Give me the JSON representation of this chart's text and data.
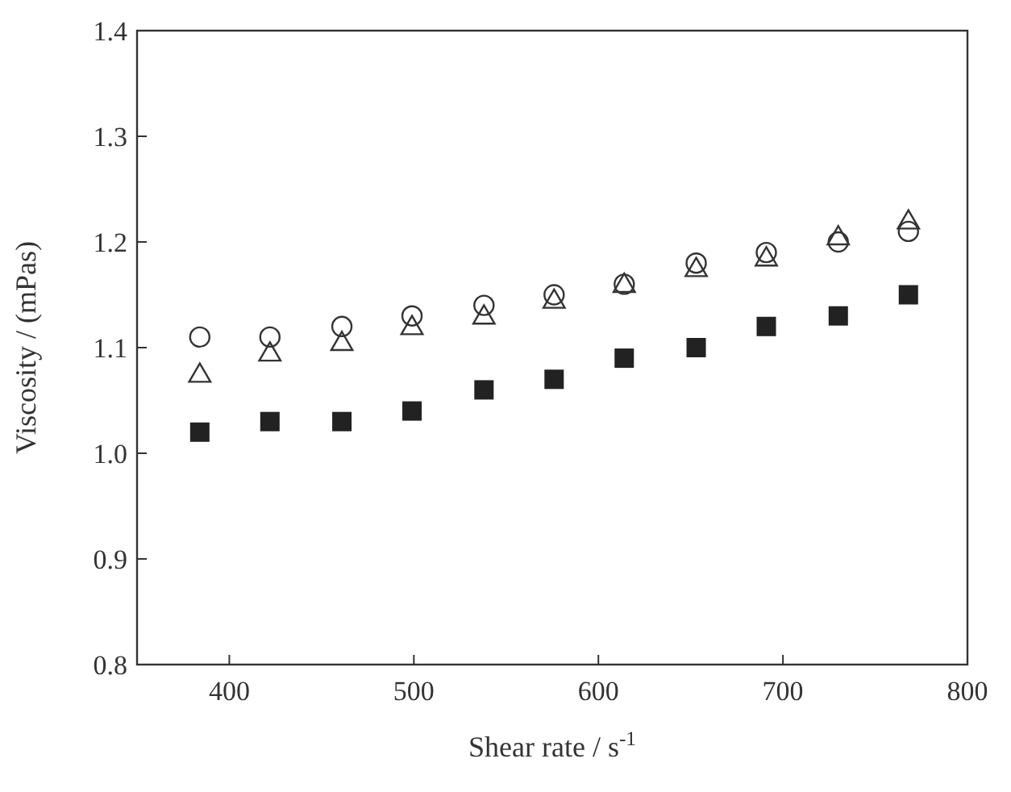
{
  "chart_data": {
    "type": "scatter",
    "xlabel": "Shear rate / s$^{-1}$",
    "ylabel": "Viscosity / (mPas)",
    "x": [
      384,
      422,
      461,
      499,
      538,
      576,
      614,
      653,
      691,
      730,
      768
    ],
    "series": [
      {
        "color": "#222222",
        "marker": "square",
        "values": [
          1.02,
          1.03,
          1.03,
          1.04,
          1.06,
          1.07,
          1.09,
          1.1,
          1.12,
          1.13,
          1.15
        ]
      },
      {
        "color": "#333333",
        "marker": "circle",
        "values": [
          1.11,
          1.11,
          1.12,
          1.13,
          1.14,
          1.15,
          1.16,
          1.18,
          1.19,
          1.2,
          1.21
        ]
      },
      {
        "color": "#333333",
        "marker": "triangle",
        "values": [
          1.075,
          1.095,
          1.105,
          1.12,
          1.13,
          1.145,
          1.16,
          1.175,
          1.185,
          1.205,
          1.22
        ]
      }
    ],
    "xlim": [
      350,
      800
    ],
    "xticks": [
      400,
      500,
      600,
      700,
      800
    ],
    "ylim": [
      0.8,
      1.4
    ],
    "yticks": [
      {
        "value": 0.8,
        "label": "0.8"
      },
      {
        "value": 0.9,
        "label": "0.9"
      },
      {
        "value": 1,
        "label": "1.0"
      },
      {
        "value": 1.1,
        "label": "1.1"
      },
      {
        "value": 1.2,
        "label": "1.2"
      },
      {
        "value": 1.3,
        "label": "1.3"
      },
      {
        "value": 1.4,
        "label": "1.4"
      }
    ]
  }
}
